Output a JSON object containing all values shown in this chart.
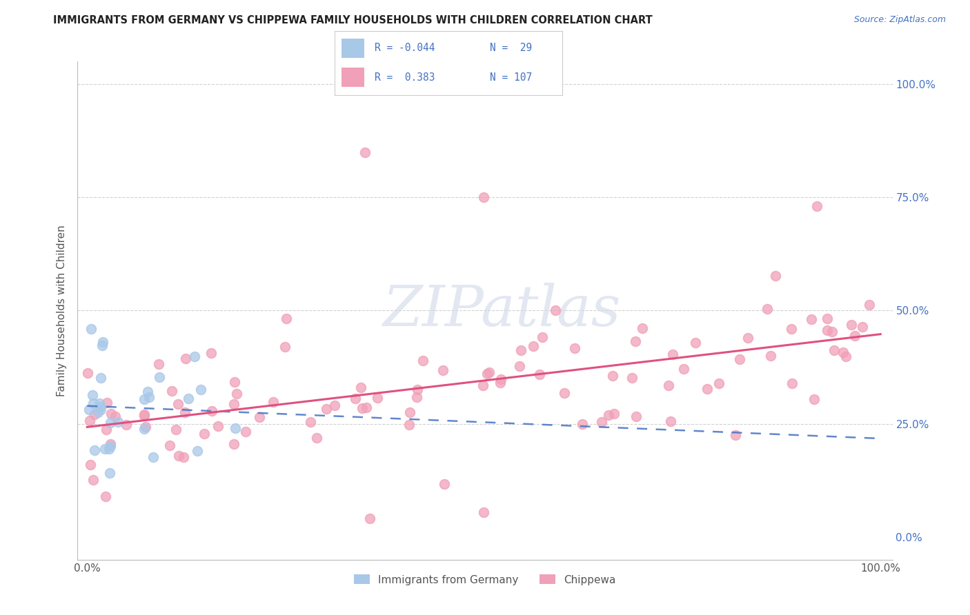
{
  "title": "IMMIGRANTS FROM GERMANY VS CHIPPEWA FAMILY HOUSEHOLDS WITH CHILDREN CORRELATION CHART",
  "source": "Source: ZipAtlas.com",
  "ylabel": "Family Households with Children",
  "color_germany": "#a8c8e8",
  "color_chippewa": "#f0a0b8",
  "color_blue_line": "#4472c4",
  "color_pink_line": "#e05080",
  "color_grid": "#cccccc",
  "watermark_color": "#d0d8e8",
  "title_color": "#222222",
  "source_color": "#4472c4",
  "right_tick_color": "#4472c4",
  "ylabel_color": "#555555",
  "legend_border_color": "#cccccc",
  "bottom_legend_color": "#555555"
}
